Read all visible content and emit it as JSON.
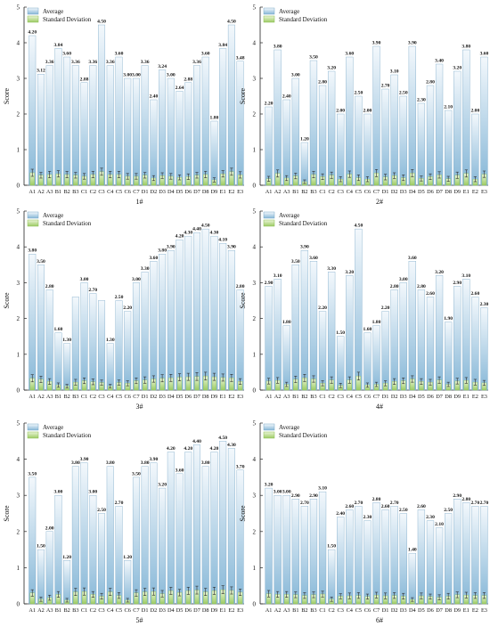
{
  "colors": {
    "avg_top": "#f3f8fc",
    "avg_bottom": "#86b7d7",
    "avg_stroke": "#7ba9c8",
    "sd_top": "#eaf5d6",
    "sd_bottom": "#9ccb64",
    "sd_stroke": "#8dbf57",
    "err": "#2b2b2b",
    "axis": "#222222",
    "text": "#111111"
  },
  "chart_data": [
    {
      "type": "bar",
      "caption": "1#",
      "ylabel": "Score",
      "ylim": [
        0,
        5
      ],
      "yticks": [
        0,
        1,
        2,
        3,
        4,
        5
      ],
      "legend": [
        "Average",
        "Standard Deviation"
      ],
      "legend_position": "top-left",
      "categories": [
        "A1",
        "A2",
        "A3",
        "B1",
        "B2",
        "B3",
        "C1",
        "C2",
        "C3",
        "C4",
        "C5",
        "C6",
        "C7",
        "D1",
        "D2",
        "D3",
        "D4",
        "D5",
        "D6",
        "D7",
        "D8",
        "D9",
        "E1",
        "E2",
        "E3"
      ],
      "series": [
        {
          "name": "Average",
          "values": [
            4.2,
            3.12,
            3.36,
            3.84,
            3.6,
            3.36,
            2.88,
            3.36,
            4.5,
            3.36,
            3.6,
            3.0,
            3.0,
            3.36,
            2.4,
            3.24,
            3.0,
            2.64,
            2.88,
            3.36,
            3.6,
            1.8,
            3.84,
            4.5,
            3.48
          ],
          "labels": [
            "4.20",
            "3.12",
            "3.36",
            "3.84",
            "3.60",
            "3.36",
            "2.88",
            "3.36",
            "4.50",
            "3.36",
            "3.60",
            "3.00",
            "3.00",
            "3.36",
            "2.40",
            "3.24",
            "3.00",
            "2.64",
            "2.88",
            "3.36",
            "3.60",
            "1.80",
            "3.84",
            "4.50",
            "3.48"
          ]
        },
        {
          "name": "Standard Deviation",
          "values": [
            0.35,
            0.28,
            0.3,
            0.32,
            0.3,
            0.28,
            0.25,
            0.3,
            0.38,
            0.3,
            0.3,
            0.25,
            0.25,
            0.28,
            0.2,
            0.27,
            0.25,
            0.22,
            0.24,
            0.28,
            0.3,
            0.15,
            0.32,
            0.38,
            0.29
          ],
          "errors": [
            0.1,
            0.08,
            0.09,
            0.09,
            0.09,
            0.08,
            0.08,
            0.09,
            0.1,
            0.09,
            0.09,
            0.08,
            0.08,
            0.08,
            0.07,
            0.08,
            0.08,
            0.07,
            0.08,
            0.08,
            0.09,
            0.06,
            0.09,
            0.1,
            0.09
          ]
        }
      ]
    },
    {
      "type": "bar",
      "caption": "2#",
      "ylabel": "Score",
      "ylim": [
        0,
        5
      ],
      "yticks": [
        0,
        1,
        2,
        3,
        4,
        5
      ],
      "legend": [
        "Average",
        "Standard Deviation"
      ],
      "legend_position": "top-left",
      "categories": [
        "A1",
        "A2",
        "A3",
        "B1",
        "B2",
        "B3",
        "C1",
        "C2",
        "C3",
        "C4",
        "C5",
        "C6",
        "C7",
        "D1",
        "D2",
        "D3",
        "D4",
        "D5",
        "D6",
        "D7",
        "D8",
        "D9",
        "E1",
        "E2",
        "E3"
      ],
      "series": [
        {
          "name": "Average",
          "values": [
            2.2,
            3.8,
            2.4,
            3.0,
            1.2,
            3.5,
            2.8,
            3.2,
            2.0,
            3.6,
            2.5,
            2.0,
            3.9,
            2.7,
            3.1,
            2.5,
            3.9,
            2.3,
            2.8,
            3.4,
            2.1,
            3.2,
            3.8,
            2.0,
            3.6
          ],
          "labels": [
            "2.20",
            "3.80",
            "2.40",
            "3.00",
            "1.20",
            "3.50",
            "2.80",
            "3.20",
            "2.00",
            "3.60",
            "2.50",
            "2.00",
            "3.90",
            "2.70",
            "3.10",
            "2.50",
            "3.90",
            "2.30",
            "2.80",
            "3.40",
            "2.10",
            "3.20",
            "3.80",
            "2.00",
            "3.60"
          ]
        },
        {
          "name": "Standard Deviation",
          "values": [
            0.18,
            0.33,
            0.2,
            0.26,
            0.1,
            0.3,
            0.24,
            0.28,
            0.17,
            0.31,
            0.21,
            0.17,
            0.34,
            0.23,
            0.27,
            0.21,
            0.34,
            0.19,
            0.24,
            0.29,
            0.18,
            0.28,
            0.33,
            0.17,
            0.31
          ],
          "errors": [
            0.07,
            0.1,
            0.07,
            0.08,
            0.05,
            0.09,
            0.08,
            0.09,
            0.07,
            0.09,
            0.08,
            0.07,
            0.1,
            0.08,
            0.08,
            0.08,
            0.1,
            0.07,
            0.08,
            0.09,
            0.07,
            0.09,
            0.1,
            0.07,
            0.09
          ]
        }
      ]
    },
    {
      "type": "bar",
      "caption": "3#",
      "ylabel": "Score",
      "ylim": [
        0,
        5
      ],
      "yticks": [
        0,
        1,
        2,
        3,
        4,
        5
      ],
      "legend": [
        "Average",
        "Standard Deviation"
      ],
      "legend_position": "top-left",
      "categories": [
        "A1",
        "A2",
        "A3",
        "B1",
        "B2",
        "B3",
        "C1",
        "C2",
        "C3",
        "C4",
        "C5",
        "C6",
        "C7",
        "D1",
        "D2",
        "D3",
        "D4",
        "D5",
        "D6",
        "D7",
        "D8",
        "D9",
        "E1",
        "E2",
        "E3"
      ],
      "series": [
        {
          "name": "Average",
          "values": [
            3.8,
            3.5,
            2.8,
            1.6,
            1.3,
            2.6,
            3.0,
            2.7,
            2.5,
            1.3,
            2.5,
            2.2,
            3.0,
            3.3,
            3.6,
            3.8,
            3.9,
            4.2,
            4.3,
            4.4,
            4.5,
            4.3,
            4.1,
            3.9,
            2.8
          ],
          "labels": [
            "3.80",
            "3.50",
            "2.80",
            "1.60",
            "1.30",
            "",
            "3.00",
            "2.70",
            "",
            "1.30",
            "2.50",
            "2.20",
            "3.00",
            "3.30",
            "3.60",
            "3.80",
            "3.90",
            "4.20",
            "4.30",
            "4.40",
            "4.50",
            "4.30",
            "4.10",
            "3.90",
            "2.80"
          ]
        },
        {
          "name": "Standard Deviation",
          "values": [
            0.33,
            0.3,
            0.24,
            0.14,
            0.11,
            0.22,
            0.26,
            0.23,
            0.21,
            0.11,
            0.21,
            0.19,
            0.26,
            0.28,
            0.31,
            0.33,
            0.34,
            0.36,
            0.37,
            0.38,
            0.39,
            0.37,
            0.35,
            0.34,
            0.24
          ],
          "errors": [
            0.1,
            0.09,
            0.08,
            0.06,
            0.05,
            0.08,
            0.08,
            0.08,
            0.07,
            0.05,
            0.07,
            0.07,
            0.08,
            0.09,
            0.09,
            0.1,
            0.1,
            0.1,
            0.1,
            0.11,
            0.11,
            0.1,
            0.1,
            0.1,
            0.08
          ]
        }
      ]
    },
    {
      "type": "bar",
      "caption": "4#",
      "ylabel": "Score",
      "ylim": [
        0,
        5
      ],
      "yticks": [
        0,
        1,
        2,
        3,
        4,
        5
      ],
      "legend": [
        "Average",
        "Standard Deviation"
      ],
      "legend_position": "top-left",
      "categories": [
        "A1",
        "A2",
        "A3",
        "B1",
        "B2",
        "B3",
        "C1",
        "C2",
        "C3",
        "C4",
        "C5",
        "C6",
        "C7",
        "D1",
        "D2",
        "D3",
        "D4",
        "D5",
        "D6",
        "D7",
        "D8",
        "D9",
        "E1",
        "E2",
        "E3"
      ],
      "series": [
        {
          "name": "Average",
          "values": [
            2.9,
            3.1,
            1.8,
            3.5,
            3.9,
            3.6,
            2.2,
            3.3,
            1.5,
            3.2,
            4.5,
            1.6,
            1.8,
            2.2,
            2.8,
            3.0,
            3.6,
            2.8,
            2.6,
            3.2,
            1.9,
            2.9,
            3.1,
            2.6,
            2.3
          ],
          "labels": [
            "2.90",
            "3.10",
            "1.80",
            "3.50",
            "3.90",
            "3.60",
            "2.20",
            "3.30",
            "1.50",
            "3.20",
            "4.50",
            "1.60",
            "1.80",
            "2.20",
            "2.80",
            "3.00",
            "3.60",
            "2.80",
            "2.60",
            "3.20",
            "1.90",
            "2.90",
            "3.10",
            "2.60",
            "2.30"
          ]
        },
        {
          "name": "Standard Deviation",
          "values": [
            0.25,
            0.27,
            0.16,
            0.3,
            0.34,
            0.31,
            0.19,
            0.28,
            0.13,
            0.28,
            0.39,
            0.14,
            0.16,
            0.19,
            0.24,
            0.26,
            0.31,
            0.24,
            0.22,
            0.28,
            0.16,
            0.25,
            0.27,
            0.22,
            0.2
          ],
          "errors": [
            0.08,
            0.08,
            0.06,
            0.09,
            0.1,
            0.09,
            0.07,
            0.09,
            0.06,
            0.09,
            0.11,
            0.06,
            0.06,
            0.07,
            0.08,
            0.08,
            0.09,
            0.08,
            0.08,
            0.09,
            0.06,
            0.08,
            0.08,
            0.08,
            0.07
          ]
        }
      ]
    },
    {
      "type": "bar",
      "caption": "5#",
      "ylabel": "Score",
      "ylim": [
        0,
        5
      ],
      "yticks": [
        0,
        1,
        2,
        3,
        4,
        5
      ],
      "legend": [
        "Average",
        "Standard Deviation"
      ],
      "legend_position": "top-left",
      "categories": [
        "A1",
        "A2",
        "A3",
        "B1",
        "B2",
        "B3",
        "C1",
        "C2",
        "C3",
        "C4",
        "C5",
        "C6",
        "C7",
        "D1",
        "D2",
        "D3",
        "D4",
        "D5",
        "D6",
        "D7",
        "D8",
        "D9",
        "E1",
        "E2",
        "E3"
      ],
      "series": [
        {
          "name": "Average",
          "values": [
            3.5,
            1.5,
            2.0,
            3.0,
            1.2,
            3.8,
            3.9,
            3.0,
            2.5,
            3.8,
            2.7,
            1.2,
            3.5,
            3.8,
            3.9,
            3.2,
            4.2,
            3.6,
            4.2,
            4.4,
            3.8,
            4.2,
            4.5,
            4.3,
            3.7
          ],
          "labels": [
            "3.50",
            "1.50",
            "2.00",
            "3.00",
            "1.20",
            "3.80",
            "3.90",
            "3.00",
            "2.50",
            "3.80",
            "2.70",
            "1.20",
            "3.50",
            "3.80",
            "3.90",
            "3.20",
            "4.20",
            "3.60",
            "4.20",
            "4.40",
            "3.80",
            "4.20",
            "4.50",
            "4.30",
            "3.70"
          ]
        },
        {
          "name": "Standard Deviation",
          "values": [
            0.3,
            0.13,
            0.17,
            0.26,
            0.1,
            0.33,
            0.34,
            0.26,
            0.21,
            0.33,
            0.23,
            0.1,
            0.3,
            0.33,
            0.34,
            0.28,
            0.36,
            0.31,
            0.36,
            0.38,
            0.33,
            0.36,
            0.39,
            0.37,
            0.32
          ],
          "errors": [
            0.09,
            0.06,
            0.07,
            0.08,
            0.05,
            0.1,
            0.1,
            0.08,
            0.08,
            0.1,
            0.08,
            0.05,
            0.09,
            0.1,
            0.1,
            0.09,
            0.1,
            0.09,
            0.1,
            0.11,
            0.1,
            0.1,
            0.11,
            0.1,
            0.09
          ]
        }
      ]
    },
    {
      "type": "bar",
      "caption": "6#",
      "ylabel": "Score",
      "ylim": [
        0,
        5
      ],
      "yticks": [
        0,
        1,
        2,
        3,
        4,
        5
      ],
      "legend": [
        "Average",
        "Standard Deviation"
      ],
      "legend_position": "top-left",
      "categories": [
        "A1",
        "A2",
        "A3",
        "B1",
        "B2",
        "B3",
        "C1",
        "C2",
        "C3",
        "C4",
        "C5",
        "C6",
        "C7",
        "D1",
        "D2",
        "D3",
        "D4",
        "D5",
        "D6",
        "D7",
        "D8",
        "D9",
        "E1",
        "E2",
        "E3"
      ],
      "series": [
        {
          "name": "Average",
          "values": [
            3.2,
            3.0,
            3.0,
            2.9,
            2.7,
            2.9,
            3.1,
            1.5,
            2.4,
            2.6,
            2.7,
            2.3,
            2.8,
            2.6,
            2.7,
            2.5,
            1.4,
            2.6,
            2.3,
            2.1,
            2.5,
            2.9,
            2.8,
            2.7,
            2.7
          ],
          "labels": [
            "3.20",
            "3.00",
            "3.00",
            "2.90",
            "2.70",
            "2.90",
            "3.10",
            "1.50",
            "2.40",
            "2.60",
            "2.70",
            "2.30",
            "2.80",
            "2.60",
            "2.70",
            "2.50",
            "1.40",
            "2.60",
            "2.30",
            "2.10",
            "2.50",
            "2.90",
            "2.80",
            "2.70",
            "2.70"
          ]
        },
        {
          "name": "Standard Deviation",
          "values": [
            0.28,
            0.26,
            0.26,
            0.25,
            0.23,
            0.25,
            0.27,
            0.13,
            0.21,
            0.22,
            0.23,
            0.2,
            0.24,
            0.22,
            0.23,
            0.21,
            0.12,
            0.22,
            0.2,
            0.18,
            0.21,
            0.25,
            0.24,
            0.23,
            0.23
          ],
          "errors": [
            0.09,
            0.08,
            0.08,
            0.08,
            0.08,
            0.08,
            0.08,
            0.06,
            0.07,
            0.08,
            0.08,
            0.07,
            0.08,
            0.08,
            0.08,
            0.08,
            0.05,
            0.08,
            0.07,
            0.07,
            0.08,
            0.08,
            0.08,
            0.08,
            0.08
          ]
        }
      ]
    }
  ]
}
